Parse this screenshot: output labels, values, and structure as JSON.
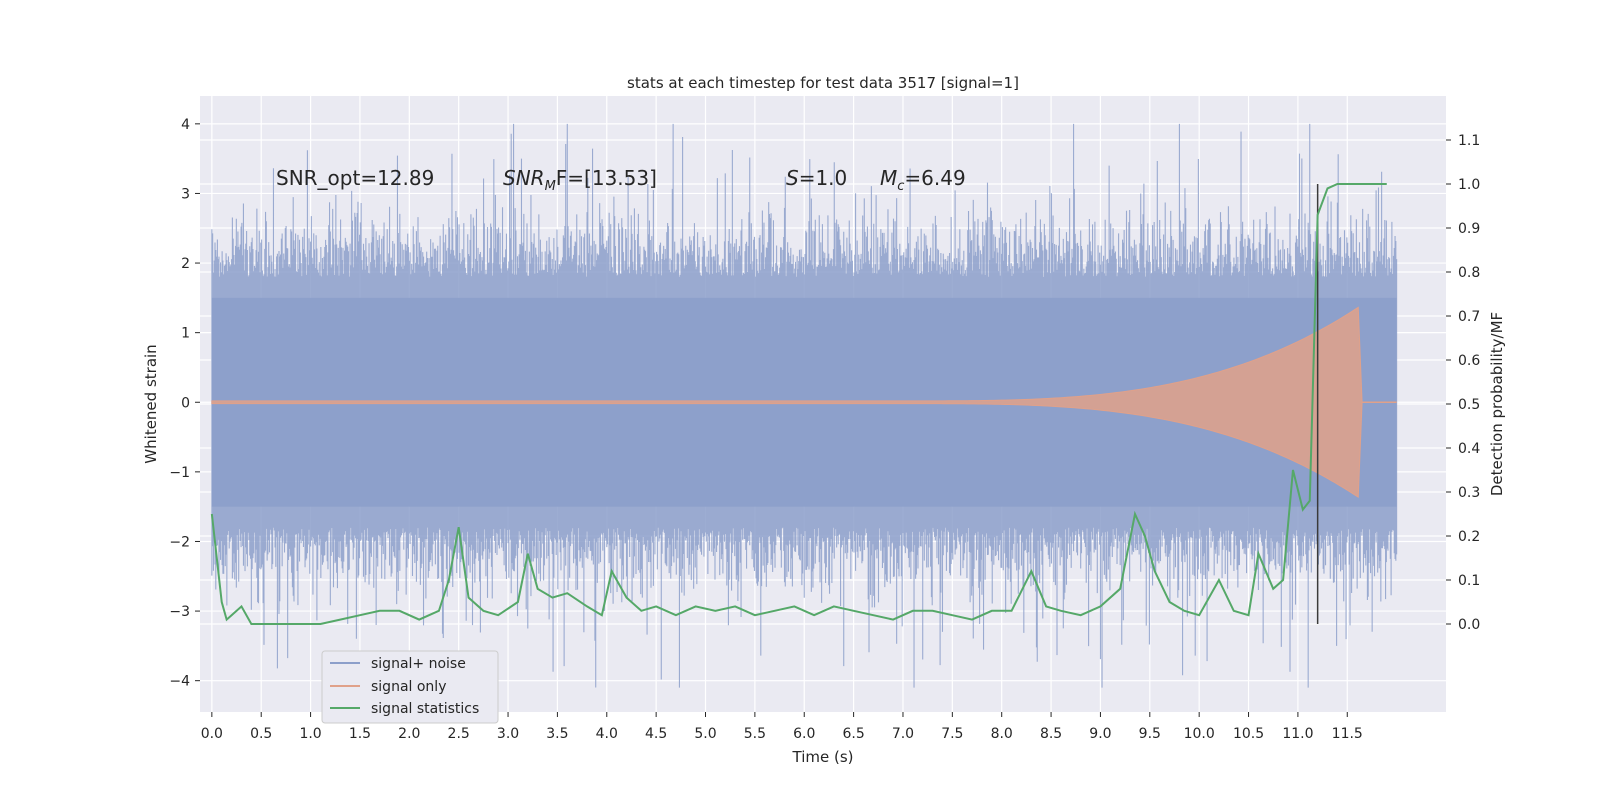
{
  "chart_data": {
    "type": "line",
    "title": "stats at each timestep for test data 3517 [signal=1]",
    "xlabel": "Time (s)",
    "ylabel_left": "Whitened strain",
    "ylabel_right": "Detection probability/MF",
    "xlim": [
      -0.12,
      12.5
    ],
    "ylim_left": [
      -4.45,
      4.4
    ],
    "ylim_right": [
      -0.2,
      1.2
    ],
    "x_ticks": [
      "0.0",
      "0.5",
      "1.0",
      "1.5",
      "2.0",
      "2.5",
      "3.0",
      "3.5",
      "4.0",
      "4.5",
      "5.0",
      "5.5",
      "6.0",
      "6.5",
      "7.0",
      "7.5",
      "8.0",
      "8.5",
      "9.0",
      "9.5",
      "10.0",
      "10.5",
      "11.0",
      "11.5"
    ],
    "y_ticks_left": [
      "4",
      "3",
      "2",
      "1",
      "0",
      "−1",
      "−2",
      "−3",
      "−4"
    ],
    "y_ticks_right": [
      "1.1",
      "1.0",
      "0.9",
      "0.8",
      "0.7",
      "0.6",
      "0.5",
      "0.4",
      "0.3",
      "0.2",
      "0.1",
      "0.0"
    ],
    "grid": true,
    "legend_placement": "lower-left",
    "annotations": {
      "snr_opt": "SNR_opt=12.89",
      "snr_mf_sym": "SNR",
      "snr_mf_sub": "M",
      "snr_mf_rest": "F=[13.53]",
      "s_sym": "S",
      "s_rest": "=1.0",
      "mc_sym": "M",
      "mc_sub": "c",
      "mc_rest": "=6.49"
    },
    "detection_marker_x": 11.2,
    "series": [
      {
        "name": "signal+ noise",
        "axis": "left",
        "color": "#8c9fca",
        "duration": 12.0,
        "envelope_typical": 1.8,
        "peak_max": 4.0,
        "peak_min": -4.1
      },
      {
        "name": "signal only",
        "axis": "left",
        "color": "#e0a18a",
        "start": 7.0,
        "merger": 11.65,
        "end": 12.0,
        "peak_amplitude": 1.4
      },
      {
        "name": "signal statistics",
        "axis": "right",
        "color": "#55a868",
        "x": [
          0.0,
          0.1,
          0.15,
          0.2,
          0.3,
          0.4,
          0.5,
          0.7,
          0.9,
          1.1,
          1.3,
          1.5,
          1.7,
          1.9,
          2.1,
          2.3,
          2.4,
          2.5,
          2.6,
          2.75,
          2.9,
          3.1,
          3.2,
          3.3,
          3.45,
          3.6,
          3.8,
          3.95,
          4.05,
          4.2,
          4.35,
          4.5,
          4.7,
          4.9,
          5.1,
          5.3,
          5.5,
          5.7,
          5.9,
          6.1,
          6.3,
          6.5,
          6.7,
          6.9,
          7.1,
          7.3,
          7.5,
          7.7,
          7.9,
          8.1,
          8.3,
          8.45,
          8.6,
          8.8,
          9.0,
          9.2,
          9.35,
          9.45,
          9.55,
          9.7,
          9.85,
          10.0,
          10.2,
          10.35,
          10.5,
          10.6,
          10.75,
          10.85,
          10.95,
          11.05,
          11.12,
          11.2,
          11.3,
          11.4,
          11.5,
          11.7,
          11.9
        ],
        "y": [
          0.25,
          0.05,
          0.01,
          0.02,
          0.04,
          0.0,
          0.0,
          0.0,
          0.0,
          0.0,
          0.01,
          0.02,
          0.03,
          0.03,
          0.01,
          0.03,
          0.1,
          0.22,
          0.06,
          0.03,
          0.02,
          0.05,
          0.16,
          0.08,
          0.06,
          0.07,
          0.04,
          0.02,
          0.12,
          0.06,
          0.03,
          0.04,
          0.02,
          0.04,
          0.03,
          0.04,
          0.02,
          0.03,
          0.04,
          0.02,
          0.04,
          0.03,
          0.02,
          0.01,
          0.03,
          0.03,
          0.02,
          0.01,
          0.03,
          0.03,
          0.12,
          0.04,
          0.03,
          0.02,
          0.04,
          0.08,
          0.25,
          0.2,
          0.12,
          0.05,
          0.03,
          0.02,
          0.1,
          0.03,
          0.02,
          0.16,
          0.08,
          0.1,
          0.35,
          0.26,
          0.28,
          0.93,
          0.99,
          1.0,
          1.0,
          1.0,
          1.0
        ]
      }
    ]
  },
  "colors": {
    "plot_bg": "#eaeaf2",
    "grid": "#ffffff",
    "marker": "#3a3a3a",
    "legend_bg": "#eaeaf2",
    "legend_border": "#cccccc"
  }
}
